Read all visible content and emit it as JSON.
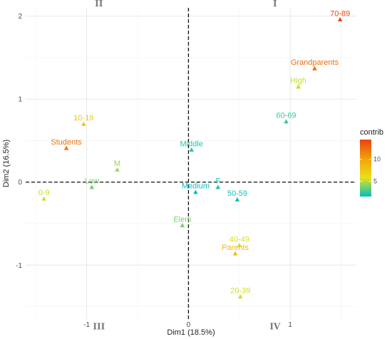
{
  "chart_data": {
    "type": "scatter",
    "xlabel": "Dim1 (18.5%)",
    "ylabel": "Dim2 (16.5%)",
    "xlim": [
      -1.6,
      1.65
    ],
    "ylim": [
      -1.65,
      2.1
    ],
    "x_ticks": [
      -1,
      0,
      1
    ],
    "y_ticks": [
      -1,
      0,
      1,
      2
    ],
    "x_tick_labels": [
      "-1",
      "0",
      "1"
    ],
    "y_tick_labels": [
      "-1",
      "0",
      "1",
      "2"
    ],
    "grid": true,
    "reference_lines": {
      "x": 0,
      "y": 0,
      "style": "dashed"
    },
    "quadrant_labels": [
      {
        "text": "I",
        "x": 0.85,
        "y": 2.15
      },
      {
        "text": "II",
        "x": -0.88,
        "y": 2.15
      },
      {
        "text": "III",
        "x": -0.88,
        "y": -1.74
      },
      {
        "text": "IV",
        "x": 0.85,
        "y": -1.74
      }
    ],
    "color_scale": {
      "title": "contrib",
      "min": 1.5,
      "max": 14.5,
      "ticks": [
        5,
        10
      ],
      "tick_labels": [
        "5",
        "10"
      ],
      "colors": [
        "#00bfc4",
        "#e7e01b",
        "#f3a20a",
        "#e8420f"
      ],
      "placement": "right"
    },
    "points": [
      {
        "label": "70-89",
        "x": 1.49,
        "y": 1.96,
        "contrib": 14.2
      },
      {
        "label": "Grandparents",
        "x": 1.24,
        "y": 1.37,
        "contrib": 12.5
      },
      {
        "label": "High",
        "x": 1.08,
        "y": 1.15,
        "contrib": 5.2
      },
      {
        "label": "60-69",
        "x": 0.96,
        "y": 0.73,
        "contrib": 2.6
      },
      {
        "label": "10-19",
        "x": -1.03,
        "y": 0.7,
        "contrib": 7.8
      },
      {
        "label": "Students",
        "x": -1.2,
        "y": 0.41,
        "contrib": 12.3
      },
      {
        "label": "Middle",
        "x": 0.03,
        "y": 0.39,
        "contrib": 2.2
      },
      {
        "label": "M",
        "x": -0.7,
        "y": 0.15,
        "contrib": 4.5
      },
      {
        "label": "Low",
        "x": -0.95,
        "y": -0.06,
        "contrib": 3.6
      },
      {
        "label": "0-9",
        "x": -1.42,
        "y": -0.2,
        "contrib": 5.3
      },
      {
        "label": "Medium",
        "x": 0.07,
        "y": -0.12,
        "contrib": 1.6
      },
      {
        "label": "F",
        "x": 0.29,
        "y": -0.06,
        "contrib": 2.0
      },
      {
        "label": "50-59",
        "x": 0.48,
        "y": -0.21,
        "contrib": 1.7
      },
      {
        "label": "Elem",
        "x": -0.06,
        "y": -0.52,
        "contrib": 3.8
      },
      {
        "label": "40-49",
        "x": 0.5,
        "y": -0.76,
        "contrib": 5.6
      },
      {
        "label": "Parents",
        "x": 0.46,
        "y": -0.86,
        "contrib": 8.3
      },
      {
        "label": "20-39",
        "x": 0.51,
        "y": -1.38,
        "contrib": 5.4
      }
    ]
  }
}
